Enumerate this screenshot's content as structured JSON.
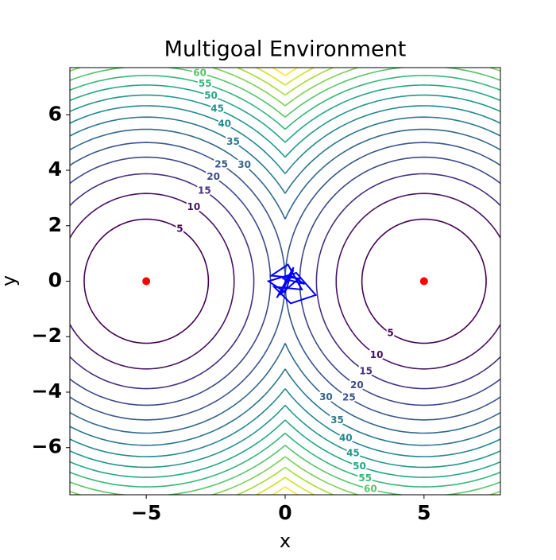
{
  "chart_data": {
    "type": "contour",
    "title": "Multigoal Environment",
    "x_label": "x",
    "y_label": "y",
    "xlim": [
      -7.75,
      7.75
    ],
    "ylim": [
      -7.7,
      7.7
    ],
    "xticks": [
      {
        "value": -5,
        "label": "−5"
      },
      0,
      5
    ],
    "yticks": [
      {
        "value": -6,
        "label": "−6"
      },
      {
        "value": -4,
        "label": "−4"
      },
      {
        "value": -2,
        "label": "−2"
      },
      0,
      2,
      4,
      6
    ],
    "levels": [
      5,
      10,
      15,
      20,
      25,
      30,
      35,
      40,
      45,
      50,
      55,
      60,
      65,
      70,
      75,
      80
    ],
    "level_colors": [
      "#440154",
      "#471164",
      "#472f7d",
      "#3e4989",
      "#39568c",
      "#31688e",
      "#2a788e",
      "#23888e",
      "#1f988b",
      "#22a884",
      "#35b779",
      "#54c568",
      "#7ad151",
      "#a5db36",
      "#d2e21b",
      "#fde725"
    ],
    "goals": {
      "name": "goals",
      "color": "#ff0000",
      "x": [
        -5,
        5
      ],
      "y": [
        0,
        0
      ]
    },
    "paths": {
      "name": "paths",
      "color": "#0000ff",
      "x": [
        0,
        0.3,
        -0.2,
        0.5,
        -0.5,
        0.1,
        0.6,
        -0.4,
        0.2,
        1.1,
        0.4,
        -0.6,
        0.0,
        0.3,
        -0.3,
        0.2,
        0.7,
        -0.1
      ],
      "y": [
        0,
        0.4,
        -0.5,
        0.1,
        0.2,
        0.6,
        -0.3,
        -0.2,
        -0.8,
        -0.5,
        0.3,
        0.0,
        -0.4,
        0.5,
        -0.6,
        0.2,
        -0.1,
        0.1
      ]
    }
  }
}
